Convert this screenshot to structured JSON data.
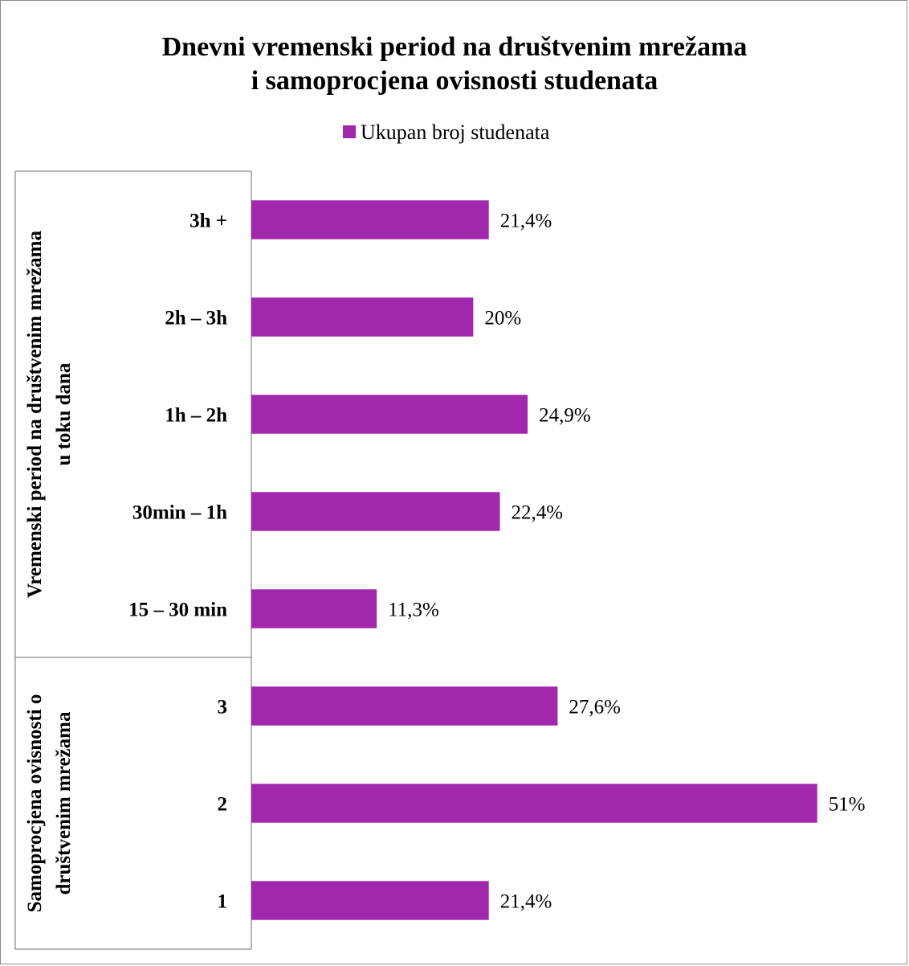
{
  "chart_data": {
    "type": "bar",
    "orientation": "horizontal",
    "title_lines": [
      "Dnevni vremenski period na društvenim mrežama",
      "i samoprocjena ovisnosti studenata"
    ],
    "legend": {
      "position": "top",
      "label": "Ukupan broj studenata"
    },
    "series": [
      {
        "name": "Ukupan broj studenata",
        "color": "#a128ad",
        "values": [
          21.4,
          20,
          24.9,
          22.4,
          11.3,
          27.6,
          51,
          21.4
        ],
        "value_labels": [
          "21,4%",
          "20%",
          "24,9%",
          "22,4%",
          "11,3%",
          "27,6%",
          "51%",
          "21,4%"
        ]
      }
    ],
    "categories": [
      "3h +",
      "2h – 3h",
      "1h – 2h",
      "30min – 1h",
      "15 – 30 min",
      "3",
      "2",
      "1"
    ],
    "groups": [
      {
        "label_lines": [
          "Vremenski period na društvenim mrežama",
          "u toku dana"
        ],
        "category_count": 5
      },
      {
        "label_lines": [
          "Samoprocjena ovisnosti o",
          "društvenim mrežama"
        ],
        "category_count": 3
      }
    ],
    "x_range": [
      0,
      55
    ],
    "grid": false
  }
}
